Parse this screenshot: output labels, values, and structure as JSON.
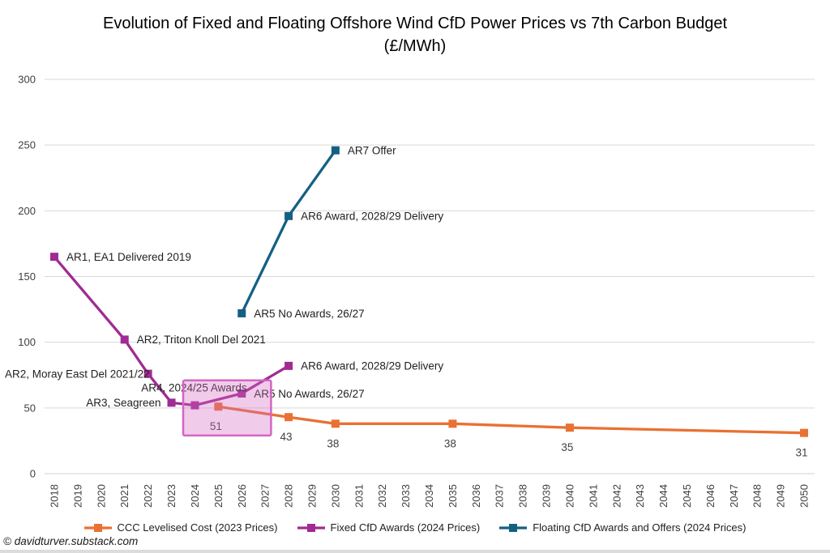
{
  "title": "Evolution of Fixed and Floating Offshore Wind CfD Power Prices vs 7th Carbon Budget (£/MWh)",
  "copyright": "© davidturver.substack.com",
  "colors": {
    "orange": "#E97132",
    "purple": "#A02B93",
    "teal": "#156082",
    "grid": "#D9D9D9",
    "axis_line": "#D0D0D0",
    "tick_text": "#404040",
    "annotation_text": "#1f1f1f",
    "data_label_text": "#404040",
    "highlight_fill_rgba": "rgba(212,106,195,0.35)",
    "highlight_stroke": "#D266C4"
  },
  "legend": [
    {
      "label": "CCC Levelised Cost (2023 Prices)",
      "color_key": "orange"
    },
    {
      "label": "Fixed CfD Awards (2024 Prices)",
      "color_key": "purple"
    },
    {
      "label": "Floating CfD Awards and Offers (2024 Prices)",
      "color_key": "teal"
    }
  ],
  "chart_data": {
    "type": "line",
    "title": "Evolution of Fixed and Floating Offshore Wind CfD Power Prices vs 7th Carbon Budget (£/MWh)",
    "xlabel": "",
    "ylabel": "",
    "x_range": [
      2018,
      2050
    ],
    "ylim": [
      0,
      300
    ],
    "grid": "horizontal",
    "legend_position": "bottom",
    "x_ticks": [
      2018,
      2019,
      2020,
      2021,
      2022,
      2023,
      2024,
      2025,
      2026,
      2027,
      2028,
      2029,
      2030,
      2031,
      2032,
      2033,
      2034,
      2035,
      2036,
      2037,
      2038,
      2039,
      2040,
      2041,
      2042,
      2043,
      2044,
      2045,
      2046,
      2047,
      2048,
      2049,
      2050
    ],
    "y_ticks": [
      0,
      50,
      100,
      150,
      200,
      250,
      300
    ],
    "series": [
      {
        "name": "CCC Levelised Cost (2023 Prices)",
        "color_key": "orange",
        "points": [
          {
            "year": 2025,
            "value": 51,
            "label": "51",
            "placement": "below"
          },
          {
            "year": 2028,
            "value": 43,
            "label": "43",
            "placement": "below"
          },
          {
            "year": 2030,
            "value": 38,
            "label": "38",
            "placement": "below"
          },
          {
            "year": 2035,
            "value": 38,
            "label": "38",
            "placement": "below"
          },
          {
            "year": 2040,
            "value": 35,
            "label": "35",
            "placement": "below"
          },
          {
            "year": 2050,
            "value": 31,
            "label": "31",
            "placement": "below"
          }
        ]
      },
      {
        "name": "Fixed CfD Awards (2024 Prices)",
        "color_key": "purple",
        "points": [
          {
            "year": 2018,
            "value": 165,
            "label": "AR1, EA1 Delivered 2019",
            "placement": "right"
          },
          {
            "year": 2021,
            "value": 102,
            "label": "AR2, Triton Knoll Del 2021",
            "placement": "right"
          },
          {
            "year": 2022,
            "value": 76,
            "label": "AR2, Moray East Del 2021/22",
            "placement": "left-far"
          },
          {
            "year": 2023,
            "value": 54,
            "label": "AR3, Seagreen",
            "placement": "left"
          },
          {
            "year": 2024,
            "value": 52,
            "label": "AR4, 2024/25 Awards",
            "placement": "above"
          },
          {
            "year": 2026,
            "value": 61,
            "label": "AR5 No Awards, 26/27",
            "placement": "right"
          },
          {
            "year": 2028,
            "value": 82,
            "label": "AR6 Award, 2028/29 Delivery",
            "placement": "right"
          }
        ]
      },
      {
        "name": "Floating CfD Awards and Offers (2024 Prices)",
        "color_key": "teal",
        "points": [
          {
            "year": 2026,
            "value": 122,
            "label": "AR5 No Awards, 26/27",
            "placement": "right"
          },
          {
            "year": 2028,
            "value": 196,
            "label": "AR6 Award, 2028/29 Delivery",
            "placement": "right"
          },
          {
            "year": 2030,
            "value": 246,
            "label": "AR7 Offer",
            "placement": "right"
          }
        ]
      }
    ],
    "highlight_box": {
      "year_start": 2023.5,
      "year_end": 2027.25,
      "value_start": 29,
      "value_end": 71
    }
  }
}
